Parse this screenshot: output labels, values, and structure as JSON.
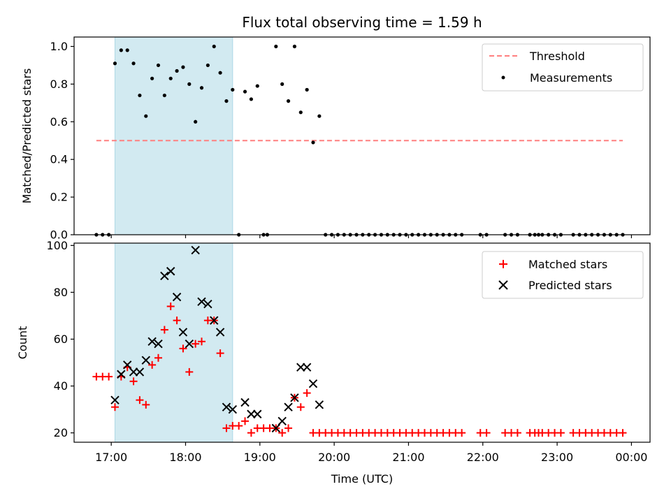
{
  "chart_data": [
    {
      "type": "scatter",
      "title": "Flux total observing time = 1.59 h",
      "ylabel": "Matched/Predicted stars",
      "ylim": [
        0,
        1.05
      ],
      "xlim": [
        "16:30",
        "00:15"
      ],
      "yticks": [
        "0.0",
        "0.2",
        "0.4",
        "0.6",
        "0.8",
        "1.0"
      ],
      "shaded_interval": [
        "17:03",
        "18:38"
      ],
      "shade_color": "#add8e6",
      "legend_position": "top-right",
      "series": [
        {
          "name": "Threshold",
          "kind": "dashed-line",
          "color": "#ff7f7f",
          "x": [
            "16:48",
            "23:53"
          ],
          "y": [
            0.5,
            0.5
          ]
        },
        {
          "name": "Measurements",
          "kind": "dots",
          "color": "#000000",
          "points": [
            [
              "16:48",
              0.0
            ],
            [
              "16:53",
              0.0
            ],
            [
              "16:58",
              0.0
            ],
            [
              "17:03",
              0.91
            ],
            [
              "17:08",
              0.98
            ],
            [
              "17:13",
              0.98
            ],
            [
              "17:18",
              0.91
            ],
            [
              "17:23",
              0.74
            ],
            [
              "17:28",
              0.63
            ],
            [
              "17:33",
              0.83
            ],
            [
              "17:38",
              0.9
            ],
            [
              "17:43",
              0.74
            ],
            [
              "17:48",
              0.83
            ],
            [
              "17:53",
              0.87
            ],
            [
              "17:58",
              0.89
            ],
            [
              "18:03",
              0.8
            ],
            [
              "18:08",
              0.6
            ],
            [
              "18:13",
              0.78
            ],
            [
              "18:18",
              0.9
            ],
            [
              "18:23",
              1.0
            ],
            [
              "18:28",
              0.86
            ],
            [
              "18:33",
              0.71
            ],
            [
              "18:38",
              0.77
            ],
            [
              "18:43",
              0.0
            ],
            [
              "18:48",
              0.76
            ],
            [
              "18:53",
              0.72
            ],
            [
              "18:58",
              0.79
            ],
            [
              "19:03",
              0.0
            ],
            [
              "19:06",
              0.0
            ],
            [
              "19:13",
              1.0
            ],
            [
              "19:18",
              0.8
            ],
            [
              "19:23",
              0.71
            ],
            [
              "19:28",
              1.0
            ],
            [
              "19:33",
              0.65
            ],
            [
              "19:38",
              0.77
            ],
            [
              "19:43",
              0.49
            ],
            [
              "19:48",
              0.63
            ],
            [
              "19:53",
              0.0
            ],
            [
              "19:58",
              0.0
            ],
            [
              "20:03",
              0.0
            ],
            [
              "20:08",
              0.0
            ],
            [
              "20:13",
              0.0
            ],
            [
              "20:18",
              0.0
            ],
            [
              "20:23",
              0.0
            ],
            [
              "20:28",
              0.0
            ],
            [
              "20:33",
              0.0
            ],
            [
              "20:38",
              0.0
            ],
            [
              "20:43",
              0.0
            ],
            [
              "20:48",
              0.0
            ],
            [
              "20:53",
              0.0
            ],
            [
              "20:58",
              0.0
            ],
            [
              "21:03",
              0.0
            ],
            [
              "21:08",
              0.0
            ],
            [
              "21:13",
              0.0
            ],
            [
              "21:18",
              0.0
            ],
            [
              "21:23",
              0.0
            ],
            [
              "21:28",
              0.0
            ],
            [
              "21:33",
              0.0
            ],
            [
              "21:38",
              0.0
            ],
            [
              "21:43",
              0.0
            ],
            [
              "21:58",
              0.0
            ],
            [
              "22:03",
              0.0
            ],
            [
              "22:18",
              0.0
            ],
            [
              "22:23",
              0.0
            ],
            [
              "22:28",
              0.0
            ],
            [
              "22:38",
              0.0
            ],
            [
              "22:42",
              0.0
            ],
            [
              "22:45",
              0.0
            ],
            [
              "22:48",
              0.0
            ],
            [
              "22:53",
              0.0
            ],
            [
              "22:58",
              0.0
            ],
            [
              "23:03",
              0.0
            ],
            [
              "23:13",
              0.0
            ],
            [
              "23:18",
              0.0
            ],
            [
              "23:23",
              0.0
            ],
            [
              "23:28",
              0.0
            ],
            [
              "23:33",
              0.0
            ],
            [
              "23:38",
              0.0
            ],
            [
              "23:43",
              0.0
            ],
            [
              "23:48",
              0.0
            ],
            [
              "23:53",
              0.0
            ]
          ]
        }
      ]
    },
    {
      "type": "scatter",
      "xlabel": "Time (UTC)",
      "ylabel": "Count",
      "ylim": [
        16,
        101
      ],
      "xlim": [
        "16:30",
        "00:15"
      ],
      "yticks": [
        "20",
        "40",
        "60",
        "80",
        "100"
      ],
      "xticks": [
        "17:00",
        "18:00",
        "19:00",
        "20:00",
        "21:00",
        "22:00",
        "23:00",
        "00:00"
      ],
      "shaded_interval": [
        "17:03",
        "18:38"
      ],
      "shade_color": "#add8e6",
      "legend_position": "top-right",
      "series": [
        {
          "name": "Matched stars",
          "kind": "plus",
          "color": "#ff0000",
          "points": [
            [
              "16:48",
              44
            ],
            [
              "16:53",
              44
            ],
            [
              "16:58",
              44
            ],
            [
              "17:03",
              31
            ],
            [
              "17:08",
              44
            ],
            [
              "17:13",
              48
            ],
            [
              "17:18",
              42
            ],
            [
              "17:23",
              34
            ],
            [
              "17:28",
              32
            ],
            [
              "17:33",
              49
            ],
            [
              "17:38",
              52
            ],
            [
              "17:43",
              64
            ],
            [
              "17:48",
              74
            ],
            [
              "17:53",
              68
            ],
            [
              "17:58",
              56
            ],
            [
              "18:03",
              46
            ],
            [
              "18:08",
              58
            ],
            [
              "18:13",
              59
            ],
            [
              "18:18",
              68
            ],
            [
              "18:23",
              68
            ],
            [
              "18:28",
              54
            ],
            [
              "18:33",
              22
            ],
            [
              "18:38",
              23
            ],
            [
              "18:43",
              23
            ],
            [
              "18:48",
              25
            ],
            [
              "18:53",
              20
            ],
            [
              "18:58",
              22
            ],
            [
              "19:03",
              22
            ],
            [
              "19:08",
              22
            ],
            [
              "19:13",
              22
            ],
            [
              "19:18",
              20
            ],
            [
              "19:23",
              22
            ],
            [
              "19:28",
              35
            ],
            [
              "19:33",
              31
            ],
            [
              "19:38",
              37
            ],
            [
              "19:43",
              20
            ],
            [
              "19:48",
              20
            ],
            [
              "19:53",
              20
            ],
            [
              "19:58",
              20
            ],
            [
              "20:03",
              20
            ],
            [
              "20:08",
              20
            ],
            [
              "20:13",
              20
            ],
            [
              "20:18",
              20
            ],
            [
              "20:23",
              20
            ],
            [
              "20:28",
              20
            ],
            [
              "20:33",
              20
            ],
            [
              "20:38",
              20
            ],
            [
              "20:43",
              20
            ],
            [
              "20:48",
              20
            ],
            [
              "20:53",
              20
            ],
            [
              "20:58",
              20
            ],
            [
              "21:03",
              20
            ],
            [
              "21:08",
              20
            ],
            [
              "21:13",
              20
            ],
            [
              "21:18",
              20
            ],
            [
              "21:23",
              20
            ],
            [
              "21:28",
              20
            ],
            [
              "21:33",
              20
            ],
            [
              "21:38",
              20
            ],
            [
              "21:43",
              20
            ],
            [
              "21:58",
              20
            ],
            [
              "22:03",
              20
            ],
            [
              "22:18",
              20
            ],
            [
              "22:23",
              20
            ],
            [
              "22:28",
              20
            ],
            [
              "22:38",
              20
            ],
            [
              "22:42",
              20
            ],
            [
              "22:45",
              20
            ],
            [
              "22:48",
              20
            ],
            [
              "22:53",
              20
            ],
            [
              "22:58",
              20
            ],
            [
              "23:03",
              20
            ],
            [
              "23:13",
              20
            ],
            [
              "23:18",
              20
            ],
            [
              "23:23",
              20
            ],
            [
              "23:28",
              20
            ],
            [
              "23:33",
              20
            ],
            [
              "23:38",
              20
            ],
            [
              "23:43",
              20
            ],
            [
              "23:48",
              20
            ],
            [
              "23:53",
              20
            ]
          ]
        },
        {
          "name": "Predicted stars",
          "kind": "x",
          "color": "#000000",
          "points": [
            [
              "17:03",
              34
            ],
            [
              "17:08",
              45
            ],
            [
              "17:13",
              49
            ],
            [
              "17:18",
              46
            ],
            [
              "17:23",
              46
            ],
            [
              "17:28",
              51
            ],
            [
              "17:33",
              59
            ],
            [
              "17:38",
              58
            ],
            [
              "17:43",
              87
            ],
            [
              "17:48",
              89
            ],
            [
              "17:53",
              78
            ],
            [
              "17:58",
              63
            ],
            [
              "18:03",
              58
            ],
            [
              "18:08",
              98
            ],
            [
              "18:13",
              76
            ],
            [
              "18:18",
              75
            ],
            [
              "18:23",
              68
            ],
            [
              "18:28",
              63
            ],
            [
              "18:33",
              31
            ],
            [
              "18:38",
              30
            ],
            [
              "18:48",
              33
            ],
            [
              "18:53",
              28
            ],
            [
              "18:58",
              28
            ],
            [
              "19:13",
              22
            ],
            [
              "19:18",
              25
            ],
            [
              "19:23",
              31
            ],
            [
              "19:28",
              35
            ],
            [
              "19:33",
              48
            ],
            [
              "19:38",
              48
            ],
            [
              "19:43",
              41
            ],
            [
              "19:48",
              32
            ]
          ]
        }
      ]
    }
  ]
}
